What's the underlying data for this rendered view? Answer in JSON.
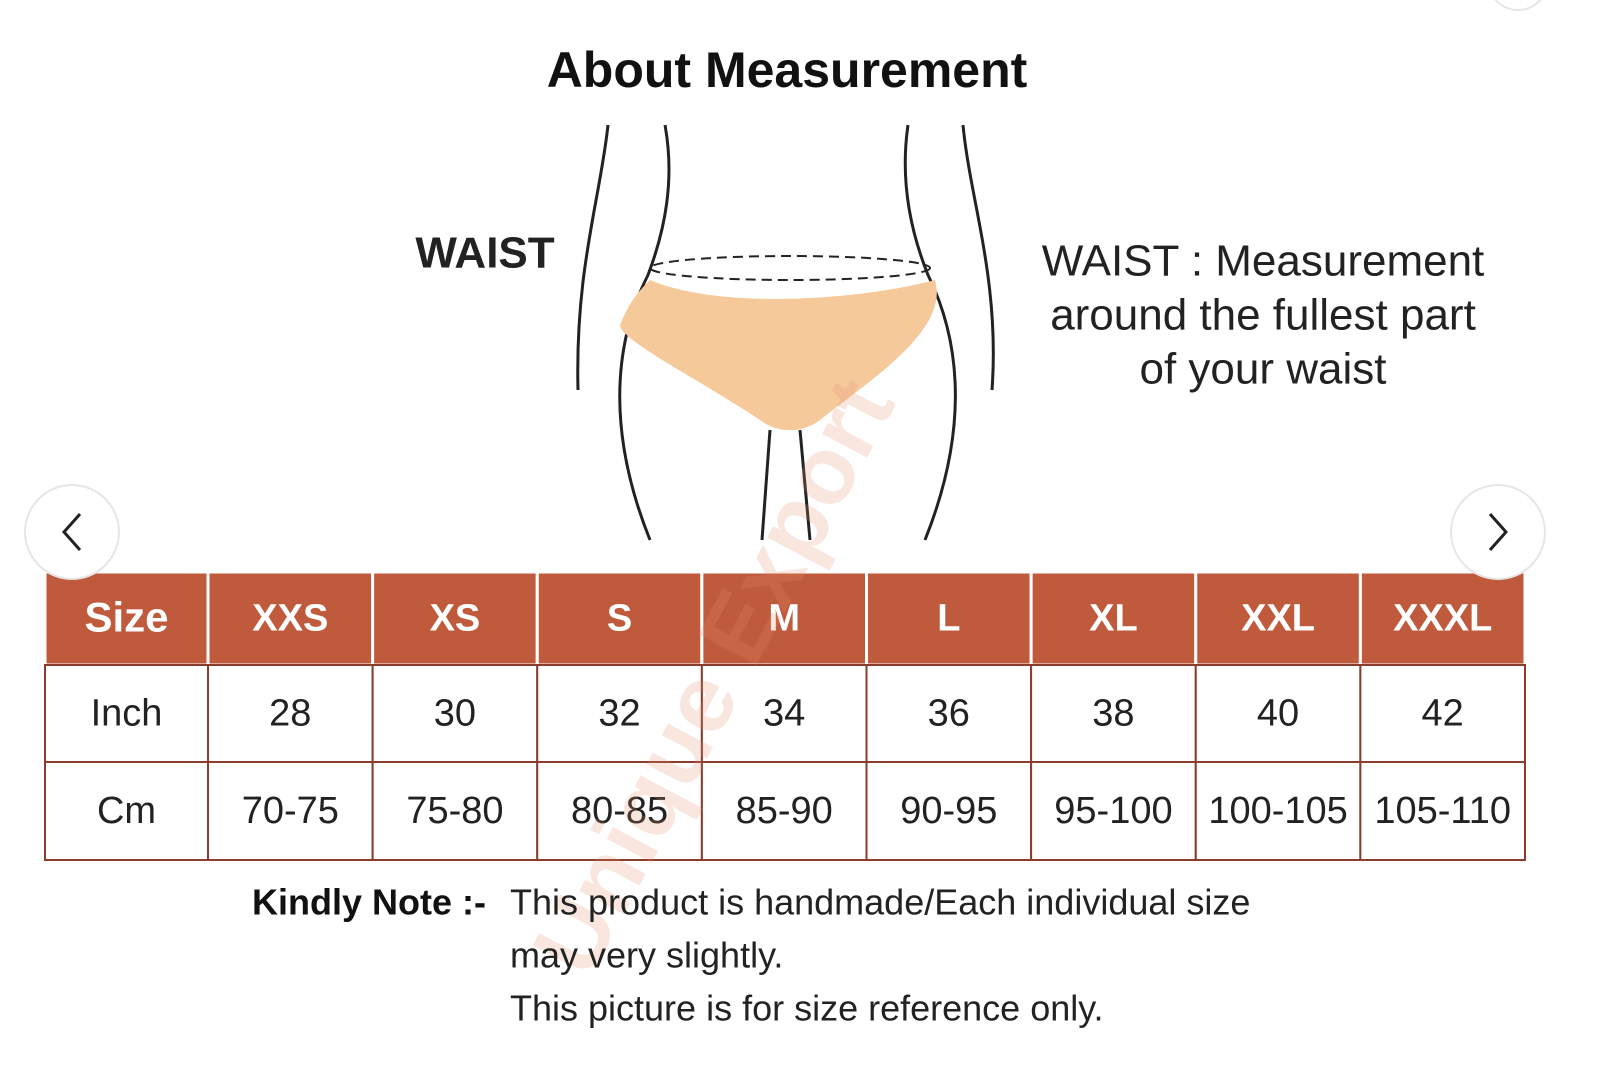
{
  "title": "About Measurement",
  "diagram": {
    "waist_label": "WAIST",
    "description": [
      "WAIST : Measurement",
      "around the fullest part",
      "of your waist"
    ],
    "watermark": "Unique Export"
  },
  "table": {
    "header": [
      "Size",
      "XXS",
      "XS",
      "S",
      "M",
      "L",
      "XL",
      "XXL",
      "XXXL"
    ],
    "rows": [
      [
        "Inch",
        "28",
        "30",
        "32",
        "34",
        "36",
        "38",
        "40",
        "42"
      ],
      [
        "Cm",
        "70-75",
        "75-80",
        "80-85",
        "85-90",
        "90-95",
        "95-100",
        "100-105",
        "105-110"
      ]
    ]
  },
  "note": {
    "label": "Kindly Note :-",
    "lines": [
      "This product is handmade/Each individual size",
      "may very slightly.",
      "This picture is for size reference only."
    ]
  }
}
